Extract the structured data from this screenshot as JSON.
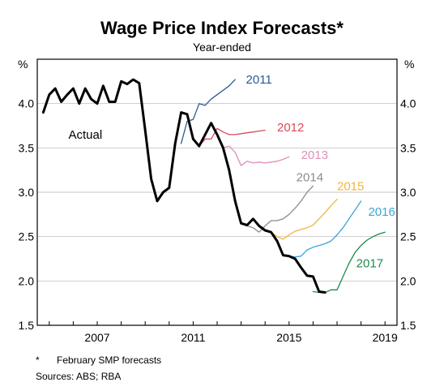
{
  "chart_data": {
    "type": "line",
    "title": "Wage Price Index Forecasts*",
    "subtitle": "Year-ended",
    "ylabel_left": "%",
    "ylabel_right": "%",
    "ylim": [
      1.5,
      4.5
    ],
    "xlim": [
      2004.5,
      2019.5
    ],
    "yticks": [
      "1.5",
      "2.0",
      "2.5",
      "3.0",
      "3.5",
      "4.0"
    ],
    "xticks": [
      "2007",
      "2011",
      "2015",
      "2019"
    ],
    "colors": {
      "actual": "#000000",
      "2011": "#2a5a96",
      "2012": "#d94a5c",
      "2013": "#e08fbb",
      "2014": "#8c8c8c",
      "2015": "#f0b43c",
      "2016": "#3aa6d8",
      "2017": "#1f8a4c"
    },
    "series": [
      {
        "name": "Actual",
        "key": "actual",
        "label_pos": [
          2005.8,
          3.65
        ],
        "x": [
          2004.75,
          2005.0,
          2005.25,
          2005.5,
          2005.75,
          2006.0,
          2006.25,
          2006.5,
          2006.75,
          2007.0,
          2007.25,
          2007.5,
          2007.75,
          2008.0,
          2008.25,
          2008.5,
          2008.75,
          2009.0,
          2009.25,
          2009.5,
          2009.75,
          2010.0,
          2010.25,
          2010.5,
          2010.75,
          2011.0,
          2011.25,
          2011.5,
          2011.75,
          2012.0,
          2012.25,
          2012.5,
          2012.75,
          2013.0,
          2013.25,
          2013.5,
          2013.75,
          2014.0,
          2014.25,
          2014.5,
          2014.75,
          2015.0,
          2015.25,
          2015.5,
          2015.75,
          2016.0,
          2016.25,
          2016.5
        ],
        "y": [
          3.9,
          4.1,
          4.17,
          4.02,
          4.1,
          4.17,
          4.0,
          4.17,
          4.05,
          4.0,
          4.2,
          4.02,
          4.02,
          4.25,
          4.22,
          4.27,
          4.23,
          3.7,
          3.15,
          2.9,
          3.0,
          3.05,
          3.55,
          3.9,
          3.88,
          3.6,
          3.52,
          3.65,
          3.78,
          3.65,
          3.5,
          3.25,
          2.9,
          2.65,
          2.63,
          2.7,
          2.62,
          2.57,
          2.55,
          2.45,
          2.29,
          2.28,
          2.25,
          2.15,
          2.06,
          2.05,
          1.88,
          1.87
        ]
      },
      {
        "name": "2011",
        "key": "2011",
        "label_pos": [
          2013.2,
          4.27
        ],
        "x": [
          2010.5,
          2010.75,
          2011.0,
          2011.25,
          2011.5,
          2011.75,
          2012.0,
          2012.25,
          2012.5,
          2012.75
        ],
        "y": [
          3.55,
          3.8,
          3.82,
          4.0,
          3.98,
          4.05,
          4.1,
          4.15,
          4.2,
          4.27
        ]
      },
      {
        "name": "2012",
        "key": "2012",
        "label_pos": [
          2014.5,
          3.73
        ],
        "x": [
          2011.0,
          2011.25,
          2011.5,
          2011.75,
          2012.0,
          2012.25,
          2012.5,
          2012.75,
          2013.0,
          2013.25,
          2013.5,
          2013.75,
          2014.0
        ],
        "y": [
          3.6,
          3.52,
          3.6,
          3.6,
          3.72,
          3.68,
          3.65,
          3.65,
          3.66,
          3.67,
          3.68,
          3.69,
          3.7
        ]
      },
      {
        "name": "2013",
        "key": "2013",
        "label_pos": [
          2015.5,
          3.42
        ],
        "x": [
          2012.0,
          2012.25,
          2012.5,
          2012.75,
          2013.0,
          2013.25,
          2013.5,
          2013.75,
          2014.0,
          2014.25,
          2014.5,
          2014.75,
          2015.0
        ],
        "y": [
          3.65,
          3.5,
          3.52,
          3.45,
          3.3,
          3.35,
          3.33,
          3.34,
          3.33,
          3.34,
          3.35,
          3.37,
          3.4
        ]
      },
      {
        "name": "2014",
        "key": "2014",
        "label_pos": [
          2015.3,
          3.17
        ],
        "x": [
          2013.0,
          2013.25,
          2013.5,
          2013.75,
          2014.0,
          2014.25,
          2014.5,
          2014.75,
          2015.0,
          2015.25,
          2015.5,
          2015.75,
          2016.0
        ],
        "y": [
          2.65,
          2.62,
          2.6,
          2.55,
          2.62,
          2.68,
          2.68,
          2.7,
          2.75,
          2.82,
          2.9,
          3.0,
          3.07
        ]
      },
      {
        "name": "2015",
        "key": "2015",
        "label_pos": [
          2017.0,
          3.07
        ],
        "x": [
          2014.0,
          2014.25,
          2014.5,
          2014.75,
          2015.0,
          2015.25,
          2015.5,
          2015.75,
          2016.0,
          2016.25,
          2016.5,
          2016.75,
          2017.0
        ],
        "y": [
          2.57,
          2.55,
          2.5,
          2.47,
          2.52,
          2.56,
          2.58,
          2.6,
          2.63,
          2.7,
          2.77,
          2.85,
          2.92
        ]
      },
      {
        "name": "2016",
        "key": "2016",
        "label_pos": [
          2018.3,
          2.78
        ],
        "x": [
          2015.0,
          2015.25,
          2015.5,
          2015.75,
          2016.0,
          2016.25,
          2016.5,
          2016.75,
          2017.0,
          2017.25,
          2017.5,
          2017.75,
          2018.0
        ],
        "y": [
          2.28,
          2.27,
          2.28,
          2.35,
          2.38,
          2.4,
          2.42,
          2.45,
          2.52,
          2.6,
          2.7,
          2.8,
          2.9
        ]
      },
      {
        "name": "2017",
        "key": "2017",
        "label_pos": [
          2017.8,
          2.2
        ],
        "x": [
          2016.0,
          2016.25,
          2016.5,
          2016.75,
          2017.0,
          2017.25,
          2017.5,
          2017.75,
          2018.0,
          2018.25,
          2018.5,
          2018.75,
          2019.0
        ],
        "y": [
          1.88,
          1.87,
          1.87,
          1.9,
          1.9,
          2.05,
          2.2,
          2.32,
          2.4,
          2.46,
          2.5,
          2.53,
          2.55
        ]
      }
    ]
  },
  "footnote": {
    "marker": "*",
    "text": "February SMP forecasts"
  },
  "sources": "Sources: ABS; RBA"
}
